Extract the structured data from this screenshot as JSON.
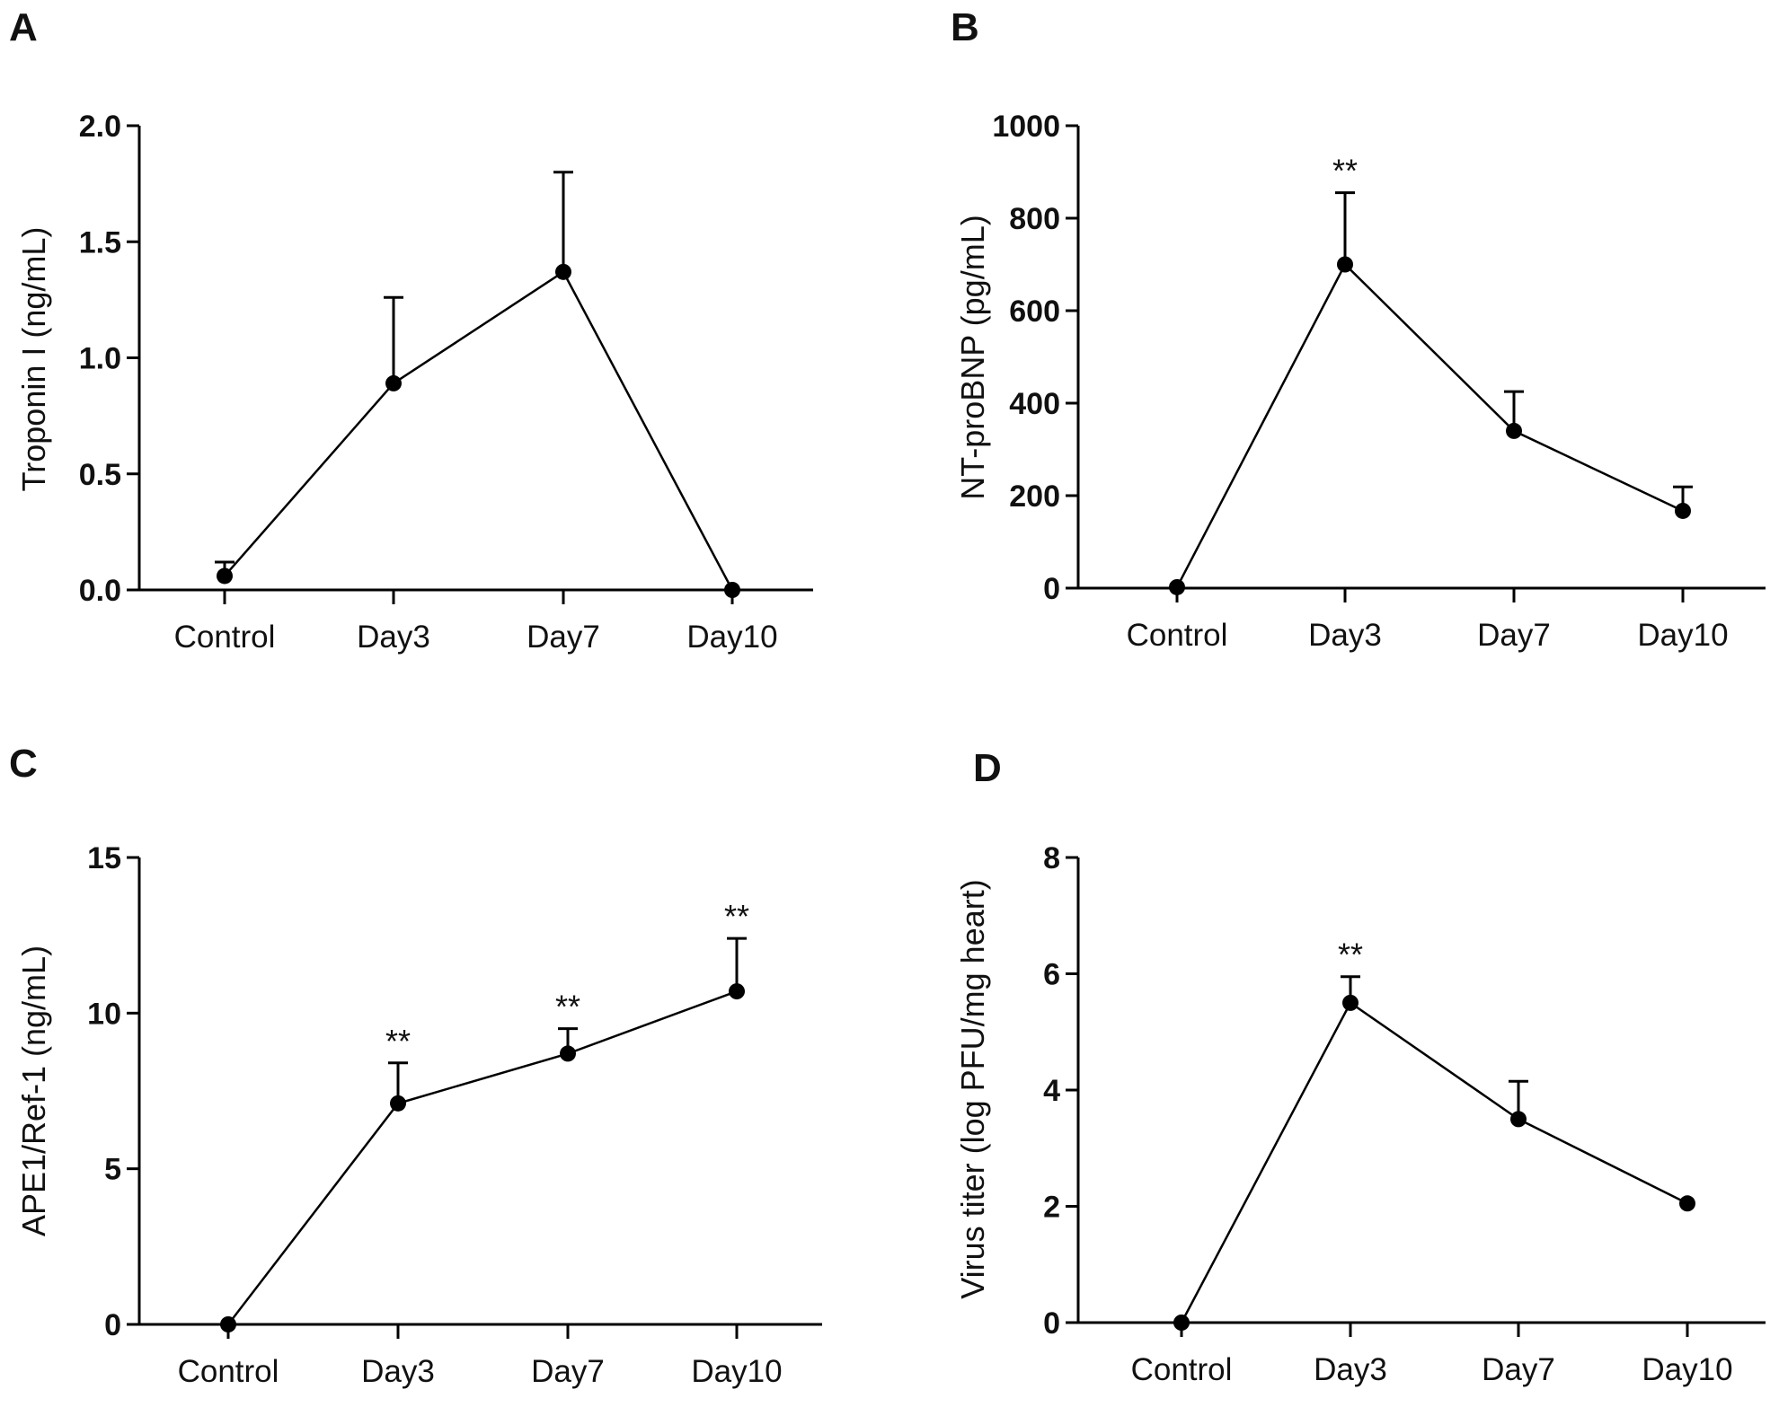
{
  "chart_data": [
    {
      "type": "line",
      "panel": "A",
      "ylabel": "Troponin I (ng/mL)",
      "ylim": [
        0,
        2
      ],
      "yticks": [
        "0.0",
        "0.5",
        "1.0",
        "1.5",
        "2.0"
      ],
      "ytick_values": [
        0,
        0.5,
        1.0,
        1.5,
        2.0
      ],
      "categories": [
        "Control",
        "Day3",
        "Day7",
        "Day10"
      ],
      "values": [
        0.06,
        0.89,
        1.37,
        0.0
      ],
      "errors": [
        0.06,
        0.37,
        0.43,
        0.0
      ],
      "significance": [
        "",
        "",
        "",
        ""
      ]
    },
    {
      "type": "line",
      "panel": "B",
      "ylabel": "NT-proBNP (pg/mL)",
      "ylim": [
        0,
        1000
      ],
      "yticks": [
        "0",
        "200",
        "400",
        "600",
        "800",
        "1000"
      ],
      "ytick_values": [
        0,
        200,
        400,
        600,
        800,
        1000
      ],
      "categories": [
        "Control",
        "Day3",
        "Day7",
        "Day10"
      ],
      "values": [
        2,
        700,
        340,
        167
      ],
      "errors": [
        0,
        155,
        85,
        52
      ],
      "significance": [
        "",
        "**",
        "",
        ""
      ]
    },
    {
      "type": "line",
      "panel": "C",
      "ylabel": "APE1/Ref-1 (ng/mL)",
      "ylim": [
        0,
        15
      ],
      "yticks": [
        "0",
        "5",
        "10",
        "15"
      ],
      "ytick_values": [
        0,
        5,
        10,
        15
      ],
      "categories": [
        "Control",
        "Day3",
        "Day7",
        "Day10"
      ],
      "values": [
        0.0,
        7.1,
        8.7,
        10.7
      ],
      "errors": [
        0.0,
        1.3,
        0.8,
        1.7
      ],
      "significance": [
        "",
        "**",
        "**",
        "**"
      ]
    },
    {
      "type": "line",
      "panel": "D",
      "ylabel": "Virus titer (log PFU/mg heart)",
      "ylim": [
        0,
        8
      ],
      "yticks": [
        "0",
        "2",
        "4",
        "6",
        "8"
      ],
      "ytick_values": [
        0,
        2,
        4,
        6,
        8
      ],
      "categories": [
        "Control",
        "Day3",
        "Day7",
        "Day10"
      ],
      "values": [
        0.0,
        5.5,
        3.5,
        2.05
      ],
      "errors": [
        0.0,
        0.45,
        0.65,
        0.0
      ],
      "significance": [
        "",
        "**",
        "",
        ""
      ]
    }
  ]
}
